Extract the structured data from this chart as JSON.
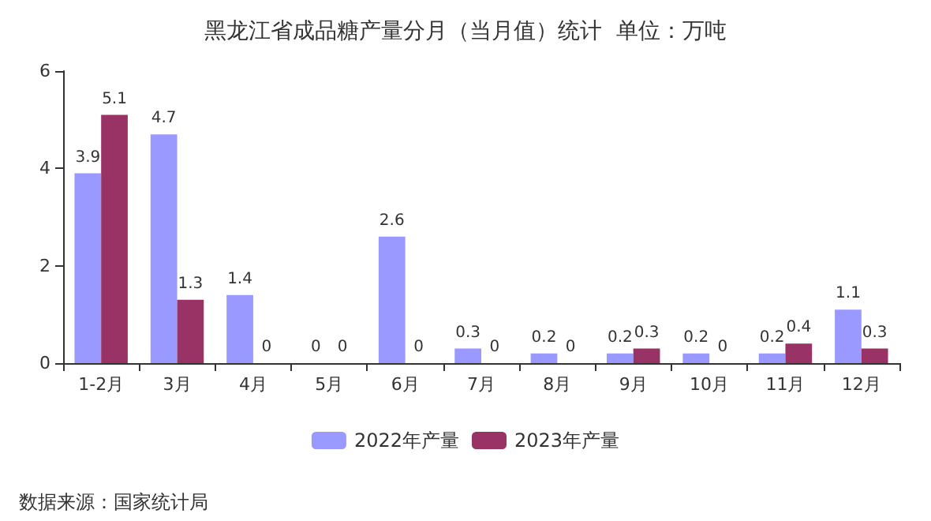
{
  "chart_data": {
    "type": "bar",
    "title": "黑龙江省成品糖产量分月（当月值）统计  单位：万吨",
    "categories": [
      "1-2月",
      "3月",
      "4月",
      "5月",
      "6月",
      "7月",
      "8月",
      "9月",
      "10月",
      "11月",
      "12月"
    ],
    "series": [
      {
        "name": "2022年产量",
        "color": "#9999ff",
        "values": [
          3.9,
          4.7,
          1.4,
          0,
          2.6,
          0.3,
          0.2,
          0.2,
          0.2,
          0.2,
          1.1
        ]
      },
      {
        "name": "2023年产量",
        "color": "#993366",
        "values": [
          5.1,
          1.3,
          0,
          0,
          0,
          0,
          0,
          0.3,
          0,
          0.4,
          0.3
        ]
      }
    ],
    "ylim": [
      0,
      6
    ],
    "yticks": [
      0,
      2,
      4,
      6
    ],
    "grid": false,
    "legend": "bottom",
    "data_labels": true,
    "annotations": [
      "数据来源：国家统计局"
    ]
  }
}
